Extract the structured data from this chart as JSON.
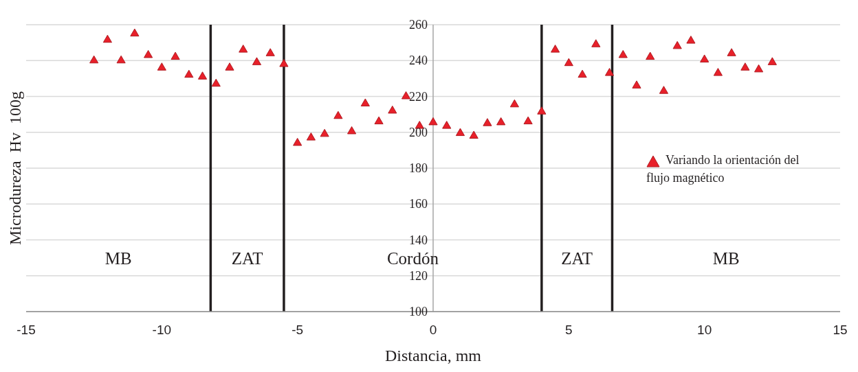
{
  "chart_data": {
    "type": "scatter",
    "xlabel": "Distancia, mm",
    "ylabel": "Microdureza  Hv  100g",
    "x": [
      -12.5,
      -12,
      -11.5,
      -11,
      -10.5,
      -10,
      -9.5,
      -9,
      -8.5,
      -8,
      -7.5,
      -7,
      -6.5,
      -6,
      -5.5,
      -5,
      -4.5,
      -4,
      -3.5,
      -3,
      -2.5,
      -2,
      -1.5,
      -1,
      -0.5,
      0,
      0.5,
      1,
      1.5,
      2,
      2.5,
      3,
      3.5,
      4,
      4.5,
      5,
      5.5,
      6,
      6.5,
      7,
      7.5,
      8,
      8.5,
      9,
      9.5,
      10,
      10.5,
      11,
      11.5,
      12,
      12.5
    ],
    "series": [
      {
        "name": "Variando la orientación del flujo magnético",
        "color": "#e8202a",
        "values": [
          240,
          251.5,
          240,
          255,
          243,
          236,
          242,
          232,
          231,
          227,
          236,
          246,
          239,
          244,
          238,
          194,
          197,
          199,
          209,
          200.5,
          216,
          206,
          212,
          220,
          203.5,
          205.5,
          203.5,
          199.5,
          198,
          205,
          205.5,
          215.5,
          206,
          211.5,
          246,
          238.5,
          232,
          249,
          233,
          243,
          226,
          242,
          223,
          248,
          251,
          240.5,
          233,
          244,
          236,
          235,
          239
        ]
      }
    ],
    "xlim": [
      -15,
      15
    ],
    "xticks": [
      -15,
      -10,
      -5,
      0,
      5,
      10,
      15
    ],
    "ylim": [
      100,
      260
    ],
    "yticks": [
      100,
      120,
      140,
      160,
      180,
      200,
      220,
      240,
      260
    ],
    "grid": "y",
    "marker": "triangle",
    "legend": "right",
    "ref_lines": [
      {
        "axis": "x",
        "value": -8.2,
        "color": "#231f20"
      },
      {
        "axis": "x",
        "value": -5.5,
        "color": "#231f20"
      },
      {
        "axis": "x",
        "value": 4,
        "color": "#231f20"
      },
      {
        "axis": "x",
        "value": 6.6,
        "color": "#231f20"
      }
    ],
    "annotations": [
      "MB",
      "ZAT",
      "Cordón",
      "ZAT",
      "MB"
    ]
  }
}
